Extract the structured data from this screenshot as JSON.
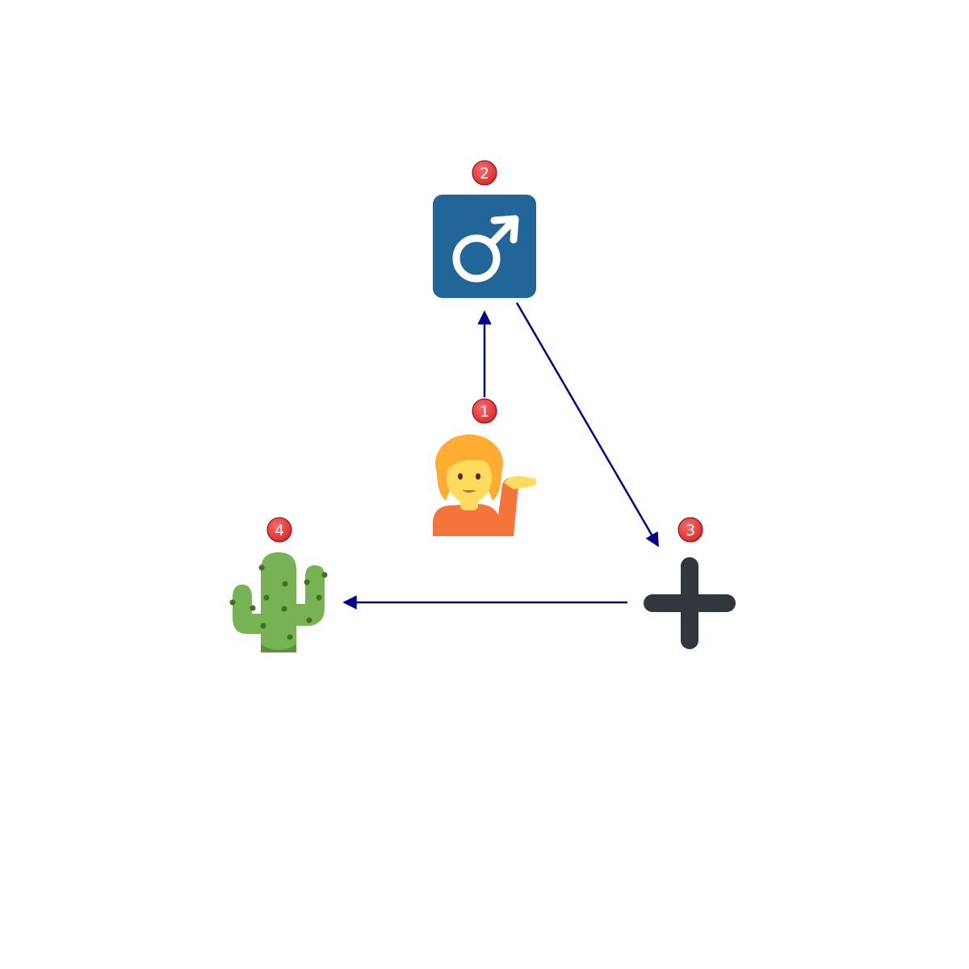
{
  "diagram": {
    "nodes": [
      {
        "id": "1",
        "label": "1",
        "icon": "person-tipping-hand-icon",
        "color": "#f7a600"
      },
      {
        "id": "2",
        "label": "2",
        "icon": "male-sign-icon",
        "color": "#226699"
      },
      {
        "id": "3",
        "label": "3",
        "icon": "plus-sign-icon",
        "color": "#31373d"
      },
      {
        "id": "4",
        "label": "4",
        "icon": "cactus-icon",
        "color": "#77b255"
      }
    ],
    "edges": [
      {
        "from": "1",
        "to": "2"
      },
      {
        "from": "2",
        "to": "3"
      },
      {
        "from": "3",
        "to": "4"
      }
    ],
    "colors": {
      "edge": "#00008b",
      "badge": "#e53935",
      "badge_text": "#ffffff"
    }
  }
}
